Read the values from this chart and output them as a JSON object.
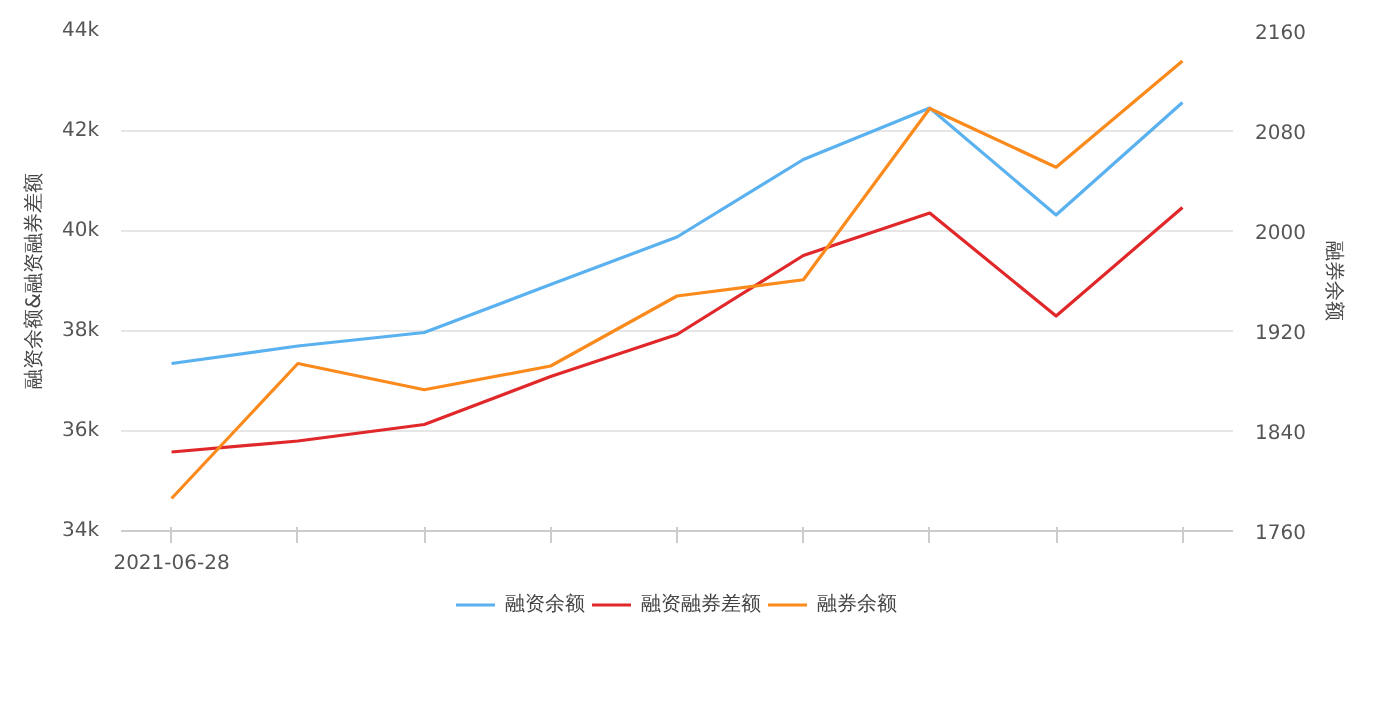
{
  "chart_data": {
    "type": "line",
    "ylabel": "融资余额&融资融券差额",
    "y2label": "融券余额",
    "categories": [
      "2021-06-28",
      null,
      null,
      null,
      null,
      null,
      null,
      null,
      null
    ],
    "series": [
      {
        "name": "融资余额",
        "color": "#5ab1ef",
        "values": [
          37350,
          37700,
          37970,
          38930,
          39880,
          41430,
          42460,
          40320,
          42570
        ]
      },
      {
        "name": "融资融券差额",
        "color": "#e0282a",
        "values": [
          35580,
          35800,
          36130,
          37090,
          37930,
          39510,
          40360,
          38300,
          40470
        ]
      },
      {
        "name": "融券余额",
        "color": "#fb8a1c",
        "axis": "y2",
        "values": [
          1786,
          1894,
          1873,
          1892,
          1948,
          1961,
          2098,
          2051,
          2136
        ]
      }
    ],
    "ylim": [
      34000,
      44000
    ],
    "yticks": [
      {
        "value": 34000,
        "label": "34k"
      },
      {
        "value": 36000,
        "label": "36k"
      },
      {
        "value": 38000,
        "label": "38k"
      },
      {
        "value": 40000,
        "label": "40k"
      },
      {
        "value": 42000,
        "label": "42k"
      },
      {
        "value": 44000,
        "label": "44k"
      }
    ],
    "y2lim": [
      1760,
      2160
    ],
    "y2ticks": [
      1760,
      1840,
      1920,
      2000,
      2080,
      2160
    ],
    "grid": "y",
    "legend": "bottom",
    "marker": "none",
    "line_style": "solid"
  }
}
